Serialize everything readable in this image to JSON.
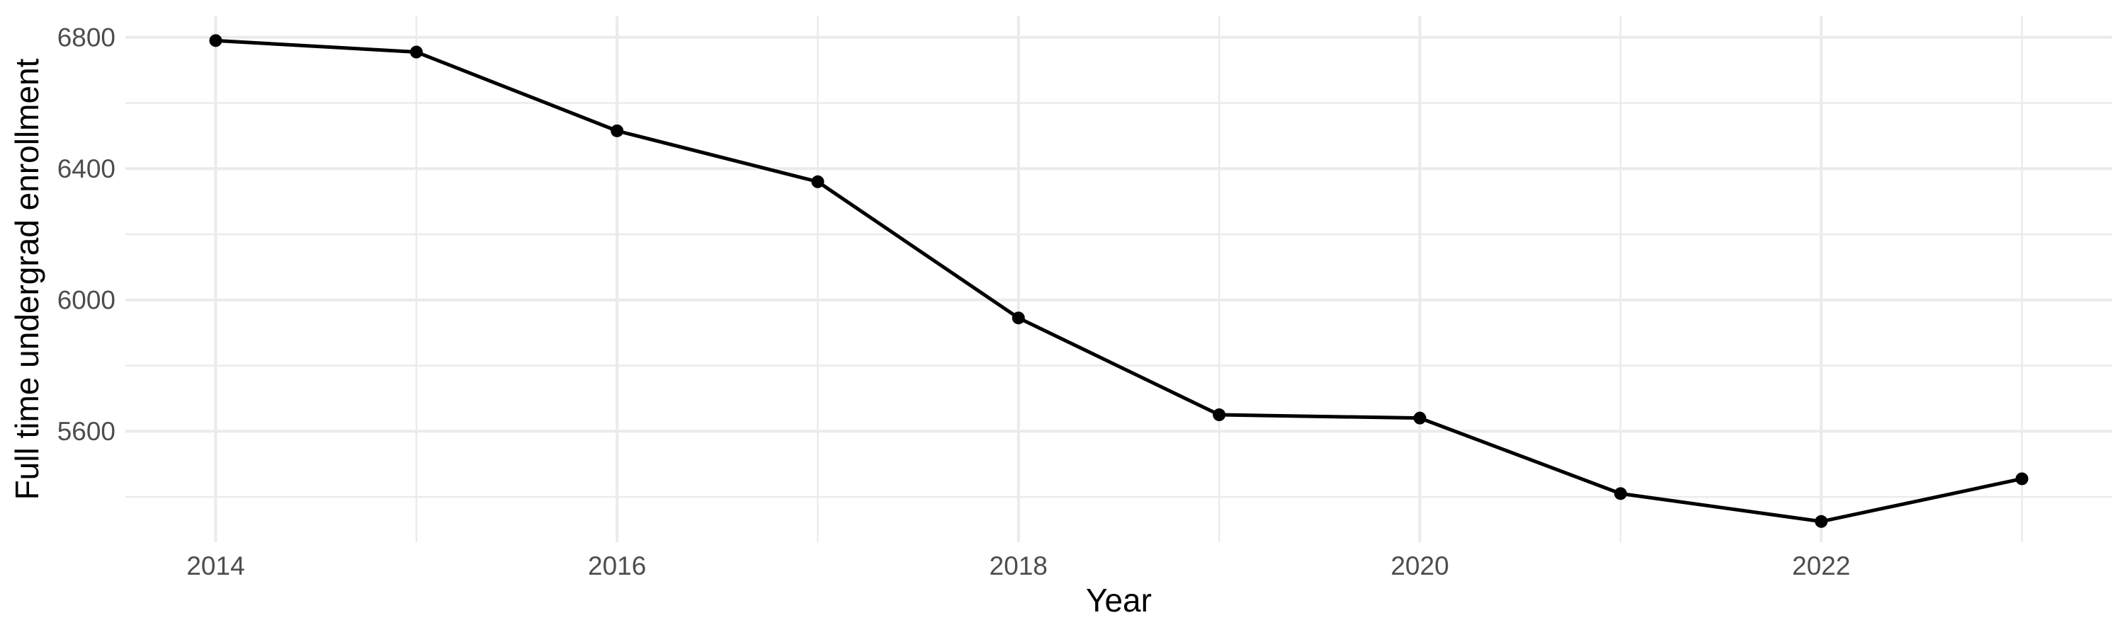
{
  "chart_data": {
    "type": "line",
    "title": "",
    "xlabel": "Year",
    "ylabel": "Full time undergrad enrollment",
    "x": [
      2014,
      2015,
      2016,
      2017,
      2018,
      2019,
      2020,
      2021,
      2022,
      2023
    ],
    "values": [
      6790,
      6755,
      6515,
      6360,
      5945,
      5650,
      5640,
      5410,
      5325,
      5455
    ],
    "x_major_ticks": [
      2014,
      2016,
      2018,
      2020,
      2022
    ],
    "x_minor_ticks": [
      2015,
      2017,
      2019,
      2021,
      2023
    ],
    "y_major_ticks": [
      5600,
      6000,
      6400,
      6800
    ],
    "y_minor_ticks": [
      5400,
      5800,
      6200,
      6600
    ],
    "xlim": [
      2013.55,
      2023.45
    ],
    "ylim": [
      5262,
      6864
    ],
    "grid": true,
    "legend": "none",
    "style": {
      "background": "#FFFFFF",
      "grid_color": "#EBEBEB",
      "line_color": "#000000",
      "point_color": "#000000",
      "tick_label_color": "#4D4D4D",
      "axis_title_color": "#000000"
    }
  }
}
